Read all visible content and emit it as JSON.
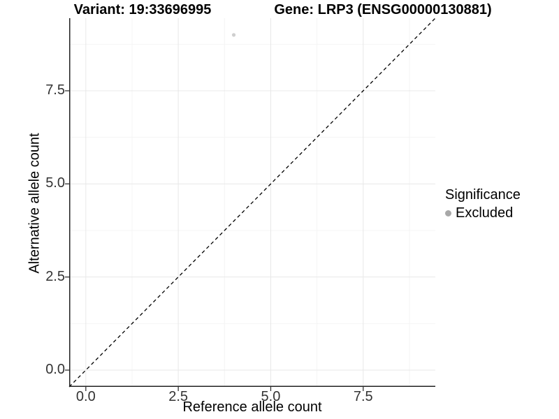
{
  "chart_data": {
    "type": "scatter",
    "titles": {
      "variant": "Variant: 19:33696995",
      "gene": "Gene: LRP3 (ENSG00000130881)"
    },
    "xlabel": "Reference allele count",
    "ylabel": "Alternative allele count",
    "xlim": [
      -0.45,
      9.45
    ],
    "ylim": [
      -0.45,
      9.45
    ],
    "x_ticks": [
      {
        "value": 0,
        "label": "0.0"
      },
      {
        "value": 2.5,
        "label": "2.5"
      },
      {
        "value": 5,
        "label": "5.0"
      },
      {
        "value": 7.5,
        "label": "7.5"
      }
    ],
    "y_ticks": [
      {
        "value": 0,
        "label": "0.0"
      },
      {
        "value": 2.5,
        "label": "2.5"
      },
      {
        "value": 5,
        "label": "5.0"
      },
      {
        "value": 7.5,
        "label": "7.5"
      }
    ],
    "x_minor_ticks": [
      1.25,
      3.75,
      6.25,
      8.75
    ],
    "y_minor_ticks": [
      1.25,
      3.75,
      6.25,
      8.75
    ],
    "grid": {
      "major_color": "#e8e8e8",
      "minor_color": "#f4f4f4",
      "background": "#ffffff"
    },
    "axis_line_color": "#222222",
    "tick_mark_color": "#333333",
    "reference_line": {
      "kind": "identity",
      "slope": 1,
      "intercept": 0,
      "style": "dashed",
      "color": "#000000"
    },
    "series": [
      {
        "name": "Excluded",
        "color": "#a8a8a8",
        "point_opacity": 0.55,
        "points": [
          {
            "x": 4,
            "y": 9
          }
        ]
      }
    ],
    "legend": {
      "title": "Significance",
      "position": "right",
      "items": [
        {
          "label": "Excluded",
          "color": "#a8a8a8",
          "marker": "circle"
        }
      ]
    }
  }
}
